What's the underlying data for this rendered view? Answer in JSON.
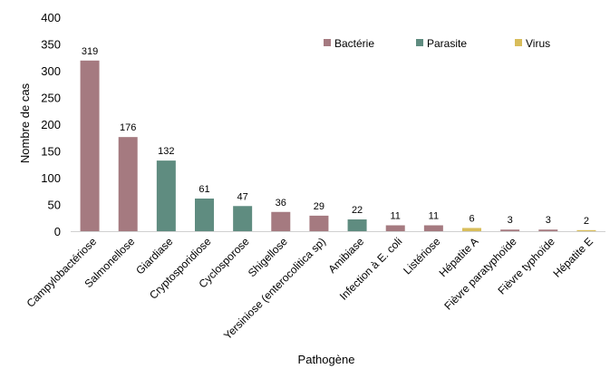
{
  "chart_data": {
    "type": "bar",
    "title": "",
    "xlabel": "Pathogène",
    "ylabel": "Nombre de cas",
    "ylim": [
      0,
      400
    ],
    "yticks": [
      0,
      50,
      100,
      150,
      200,
      250,
      300,
      350,
      400
    ],
    "grid": false,
    "legend_position": "top-right",
    "legend": [
      {
        "name": "Bactérie",
        "color": "#a57a80"
      },
      {
        "name": "Parasite",
        "color": "#5f8c80"
      },
      {
        "name": "Virus",
        "color": "#d8bd5b"
      }
    ],
    "categories": [
      "Campylobactériose",
      "Salmonellose",
      "Giardiase",
      "Cryptosporidiose",
      "Cyclosporose",
      "Shigellose",
      "Yersiniose (enterocolitica sp)",
      "Amibiase",
      "Infection à E. coli",
      "Listériose",
      "Hépatite A",
      "Fièvre paratyphoïde",
      "Fièvre typhoïde",
      "Hépatite E"
    ],
    "values": [
      319,
      176,
      132,
      61,
      47,
      36,
      29,
      22,
      11,
      11,
      6,
      3,
      3,
      2
    ],
    "groups": [
      "Bactérie",
      "Bactérie",
      "Parasite",
      "Parasite",
      "Parasite",
      "Bactérie",
      "Bactérie",
      "Parasite",
      "Bactérie",
      "Bactérie",
      "Virus",
      "Bactérie",
      "Bactérie",
      "Virus"
    ]
  }
}
